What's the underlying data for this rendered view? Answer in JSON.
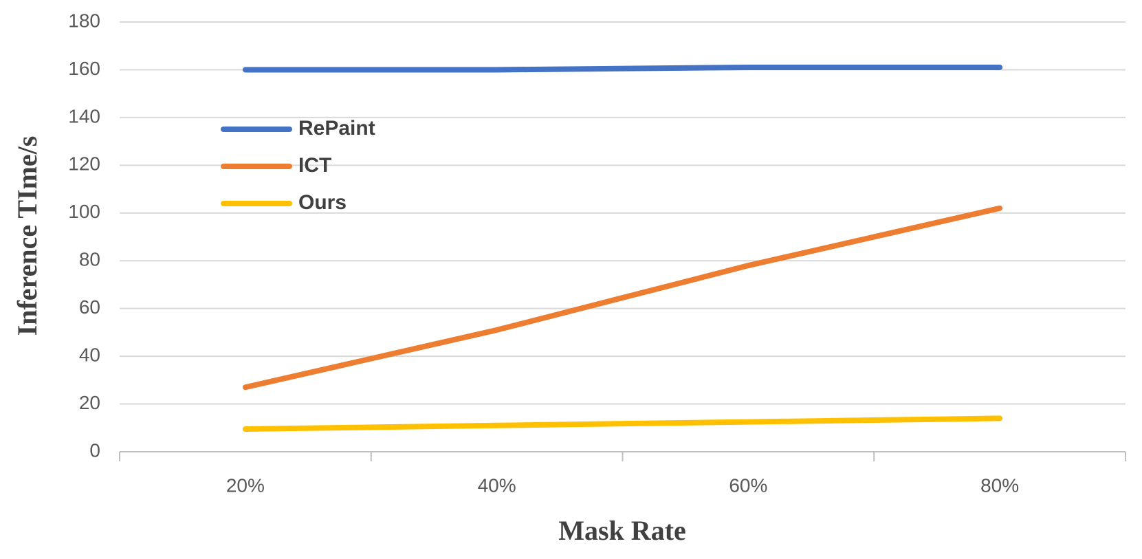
{
  "chart_data": {
    "type": "line",
    "x_label": "Mask Rate",
    "y_label": "Inference TIme/s",
    "categories": [
      "20%",
      "40%",
      "60%",
      "80%"
    ],
    "series": [
      {
        "name": "RePaint",
        "color": "#4472c4",
        "values": [
          160,
          160,
          161,
          161
        ]
      },
      {
        "name": "ICT",
        "color": "#ed7d31",
        "values": [
          27,
          51,
          78,
          102
        ]
      },
      {
        "name": "Ours",
        "color": "#ffc000",
        "values": [
          9.5,
          11,
          12.5,
          14
        ]
      }
    ],
    "ylim": [
      0,
      180
    ],
    "yticks": [
      0,
      20,
      40,
      60,
      80,
      100,
      120,
      140,
      160,
      180
    ],
    "grid": true,
    "legend": "upper left"
  }
}
